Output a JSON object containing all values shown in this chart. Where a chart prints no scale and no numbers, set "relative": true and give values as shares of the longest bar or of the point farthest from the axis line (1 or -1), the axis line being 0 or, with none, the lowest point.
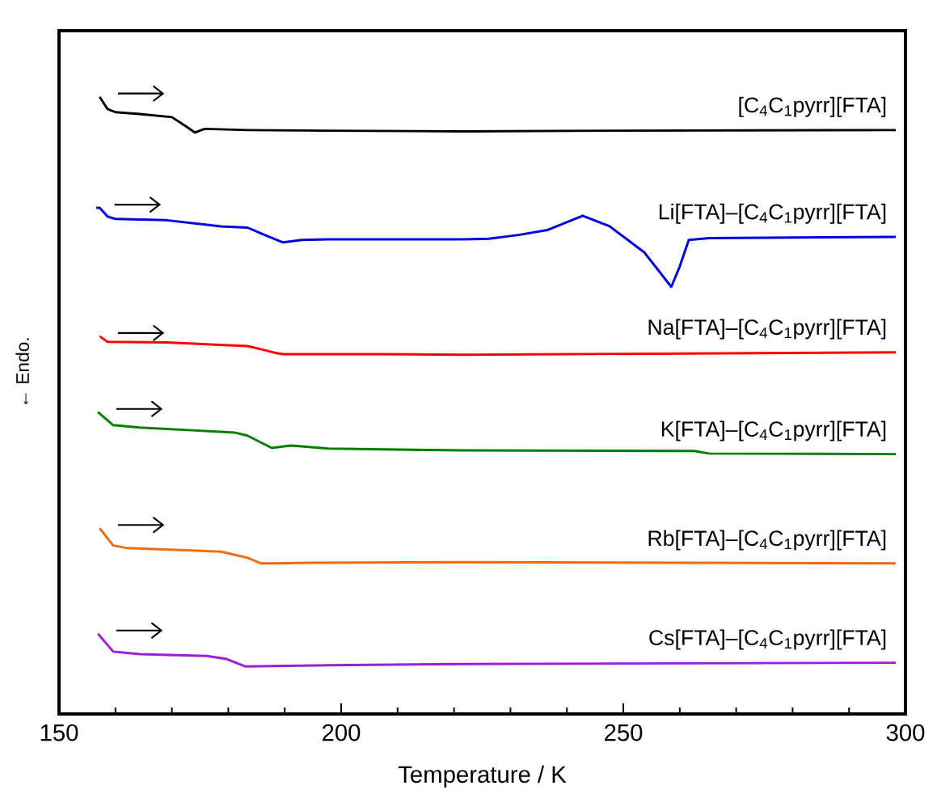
{
  "chart_data": {
    "type": "line",
    "relative": true,
    "xlabel": "Temperature / K",
    "ylabel": "← Endo.",
    "xlim": [
      150,
      300
    ],
    "xticks": [
      150,
      {
        "value": 160,
        "label": null
      },
      {
        "value": 170,
        "label": null
      },
      {
        "value": 180,
        "label": null
      },
      {
        "value": 190,
        "label": null
      },
      200,
      {
        "value": 210,
        "label": null
      },
      {
        "value": 220,
        "label": null
      },
      {
        "value": 230,
        "label": null
      },
      {
        "value": 240,
        "label": null
      },
      250,
      {
        "value": 260,
        "label": null
      },
      {
        "value": 270,
        "label": null
      },
      {
        "value": 280,
        "label": null
      },
      {
        "value": 290,
        "label": null
      },
      300
    ],
    "series": [
      {
        "name": "[C$_{4}$C$_{1}$pyrr][FTA]",
        "color": "#000000",
        "x": [
          157.2,
          158.6,
          160,
          164.3,
          170,
          172.5,
          174.1,
          175.8,
          183.4,
          197.7,
          221.6,
          247,
          298.3
        ],
        "values": [
          1.0,
          0.98,
          0.975,
          0.972,
          0.967,
          0.952,
          0.942,
          0.948,
          0.946,
          0.945,
          0.944,
          0.945,
          0.946
        ]
      },
      {
        "name": "Li[FTA]–[C$_{4}$C$_{1}$pyrr][FTA]",
        "color": "#0000e0",
        "x": [
          156.6,
          157.2,
          158.6,
          160,
          169.1,
          178.7,
          183.4,
          186.2,
          189.7,
          193,
          197.7,
          221.6,
          226.2,
          231.4,
          236.5,
          242.8,
          247.6,
          253.7,
          258.5,
          260,
          261.6,
          265.2,
          298.3
        ],
        "values": [
          0.82,
          0.82,
          0.806,
          0.802,
          0.8,
          0.79,
          0.788,
          0.777,
          0.764,
          0.768,
          0.769,
          0.769,
          0.77,
          0.776,
          0.784,
          0.807,
          0.79,
          0.748,
          0.692,
          0.725,
          0.768,
          0.771,
          0.773
        ]
      },
      {
        "name": "Na[FTA]–[C$_{4}$C$_{1}$pyrr][FTA]",
        "color": "#ff0000",
        "x": [
          157.2,
          158.6,
          169.1,
          183.4,
          186.2,
          188.3,
          189.7,
          207.3,
          221.6,
          298.3
        ],
        "values": [
          0.612,
          0.603,
          0.602,
          0.596,
          0.59,
          0.585,
          0.583,
          0.583,
          0.582,
          0.586
        ]
      },
      {
        "name": "K[FTA]–[C$_{4}$C$_{1}$pyrr][FTA]",
        "color": "#008000",
        "x": [
          156.9,
          159.6,
          164.3,
          181.1,
          183.4,
          187.7,
          191.1,
          197.7,
          221.6,
          262.6,
          265.2,
          298.3
        ],
        "values": [
          0.489,
          0.468,
          0.464,
          0.456,
          0.451,
          0.431,
          0.435,
          0.43,
          0.427,
          0.426,
          0.422,
          0.421
        ]
      },
      {
        "name": "Rb[FTA]–[C$_{4}$C$_{1}$pyrr][FTA]",
        "color": "#f26a10",
        "x": [
          157.2,
          159.6,
          161.9,
          178.7,
          183.4,
          185.8,
          188.3,
          194.4,
          221.6,
          298.3
        ],
        "values": [
          0.301,
          0.273,
          0.269,
          0.263,
          0.253,
          0.244,
          0.244,
          0.245,
          0.246,
          0.244
        ]
      },
      {
        "name": "Cs[FTA]–[C$_{4}$C$_{1}$pyrr][FTA]",
        "color": "#9b1dd8",
        "x": [
          156.9,
          159.6,
          164.3,
          176.2,
          179.7,
          183,
          197.7,
          221.6,
          298.3
        ],
        "values": [
          0.13,
          0.101,
          0.097,
          0.094,
          0.089,
          0.077,
          0.079,
          0.081,
          0.083
        ]
      }
    ]
  }
}
